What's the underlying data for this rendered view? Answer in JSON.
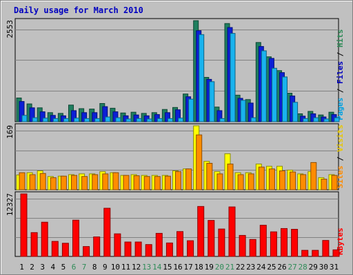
{
  "chart_data": [
    {
      "type": "bar",
      "title": "Daily usage for March 2010",
      "ymax_label": "2553",
      "right_label_parts": [
        {
          "text": "Pages",
          "color": "#00a0e0"
        },
        {
          "text": " / ",
          "color": "#000000"
        },
        {
          "text": "Files",
          "color": "#0000c0"
        },
        {
          "text": " / ",
          "color": "#000000"
        },
        {
          "text": "Hits",
          "color": "#2e8b57"
        }
      ],
      "categories": [
        "1",
        "2",
        "3",
        "4",
        "5",
        "6",
        "7",
        "8",
        "9",
        "10",
        "11",
        "12",
        "13",
        "14",
        "15",
        "16",
        "17",
        "18",
        "19",
        "20",
        "21",
        "22",
        "23",
        "24",
        "25",
        "26",
        "27",
        "28",
        "29",
        "30",
        "31"
      ],
      "weekend_days": [
        "6",
        "7",
        "13",
        "14",
        "20",
        "21",
        "27",
        "28"
      ],
      "ylim": [
        0,
        2553
      ],
      "series": [
        {
          "name": "Hits",
          "color": "#1f7f5f",
          "values": [
            600,
            450,
            350,
            230,
            210,
            420,
            330,
            320,
            460,
            340,
            220,
            240,
            210,
            230,
            310,
            360,
            700,
            2553,
            1120,
            370,
            2480,
            670,
            560,
            2000,
            1640,
            1290,
            720,
            200,
            260,
            170,
            240
          ]
        },
        {
          "name": "Files",
          "color": "#0b1fd6",
          "values": [
            510,
            350,
            250,
            160,
            150,
            280,
            230,
            230,
            380,
            250,
            150,
            170,
            150,
            180,
            230,
            300,
            630,
            2300,
            1070,
            280,
            2380,
            590,
            470,
            1900,
            1600,
            1240,
            650,
            140,
            200,
            120,
            180
          ]
        },
        {
          "name": "Pages",
          "color": "#19b3ee",
          "values": [
            160,
            100,
            90,
            80,
            80,
            90,
            80,
            80,
            120,
            100,
            70,
            80,
            70,
            80,
            80,
            90,
            570,
            2200,
            1010,
            80,
            2230,
            540,
            100,
            1790,
            1350,
            1130,
            490,
            80,
            100,
            70,
            100
          ]
        }
      ]
    },
    {
      "type": "bar",
      "ymax_label": "169",
      "right_label_parts": [
        {
          "text": "Sites",
          "color": "#ff8c00"
        },
        {
          "text": " / ",
          "color": "#000000"
        },
        {
          "text": "Visits",
          "color": "#e8c800"
        }
      ],
      "categories": [
        "1",
        "2",
        "3",
        "4",
        "5",
        "6",
        "7",
        "8",
        "9",
        "10",
        "11",
        "12",
        "13",
        "14",
        "15",
        "16",
        "17",
        "18",
        "19",
        "20",
        "21",
        "22",
        "23",
        "24",
        "25",
        "26",
        "27",
        "28",
        "29",
        "30",
        "31"
      ],
      "ylim": [
        0,
        169
      ],
      "series": [
        {
          "name": "Visits",
          "color": "#ffff00",
          "values": [
            39,
            45,
            50,
            35,
            36,
            40,
            42,
            42,
            48,
            45,
            38,
            40,
            38,
            38,
            38,
            50,
            55,
            169,
            75,
            48,
            95,
            45,
            45,
            68,
            62,
            62,
            52,
            42,
            48,
            32,
            40
          ]
        },
        {
          "name": "Sites",
          "color": "#ff8c00",
          "values": [
            45,
            40,
            43,
            32,
            36,
            38,
            35,
            40,
            42,
            45,
            38,
            37,
            35,
            35,
            36,
            48,
            55,
            145,
            70,
            42,
            68,
            40,
            42,
            60,
            55,
            50,
            47,
            40,
            72,
            28,
            38
          ]
        }
      ]
    },
    {
      "type": "bar",
      "ymax_label": "12327",
      "right_label_parts": [
        {
          "text": "KBytes",
          "color": "#ff0000"
        }
      ],
      "categories": [
        "1",
        "2",
        "3",
        "4",
        "5",
        "6",
        "7",
        "8",
        "9",
        "10",
        "11",
        "12",
        "13",
        "14",
        "15",
        "16",
        "17",
        "18",
        "19",
        "20",
        "21",
        "22",
        "23",
        "24",
        "25",
        "26",
        "27",
        "28",
        "29",
        "30",
        "31"
      ],
      "ylim": [
        0,
        12327
      ],
      "series": [
        {
          "name": "KBytes",
          "color": "#ff0000",
          "values": [
            12327,
            4700,
            6750,
            2970,
            2600,
            7150,
            1950,
            3850,
            9500,
            4450,
            2850,
            2850,
            2350,
            4550,
            2650,
            4900,
            3100,
            9850,
            7100,
            5400,
            9750,
            4150,
            3350,
            6150,
            4850,
            5500,
            5350,
            1200,
            1200,
            3150,
            1300
          ]
        }
      ]
    }
  ]
}
